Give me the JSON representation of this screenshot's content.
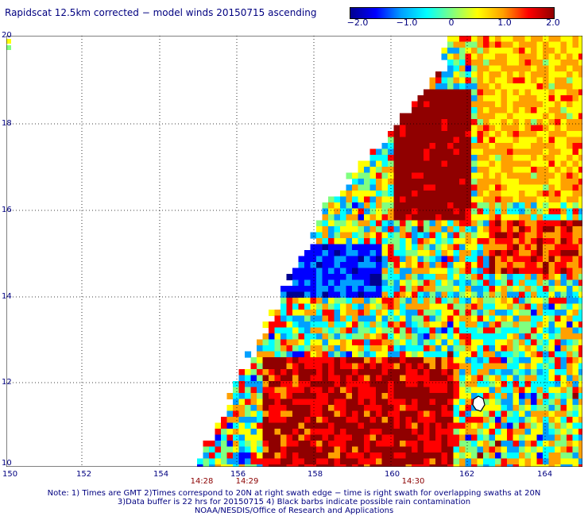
{
  "title": "Rapidscat 12.5km corrected − model winds 20150715 ascending",
  "colorbar": {
    "ticks": [
      "−2.0",
      "−1.0",
      "0",
      "1.0",
      "2.0"
    ],
    "colors": [
      "#000090",
      "#0000ff",
      "#00a0ff",
      "#00ffff",
      "#80ff80",
      "#ffff00",
      "#ffa000",
      "#ff0000",
      "#900000"
    ]
  },
  "map": {
    "lon_labels": [
      "150",
      "152",
      "154",
      "156",
      "158",
      "160",
      "162",
      "164"
    ],
    "lat_labels": [
      "20",
      "18",
      "16",
      "14",
      "12",
      "10"
    ],
    "times": [
      "14:28",
      "14:29",
      "14:30"
    ]
  },
  "notes": [
    "Note: 1) Times are GMT 2)Times correspond to 20N at right swath edge − time is right swath for overlapping swaths at 20N",
    "3)Data buffer is 22 hrs for 20150715 4) Black barbs indicate possible rain contamination",
    "NOAA/NESDIS/Office of Research and Applications"
  ]
}
